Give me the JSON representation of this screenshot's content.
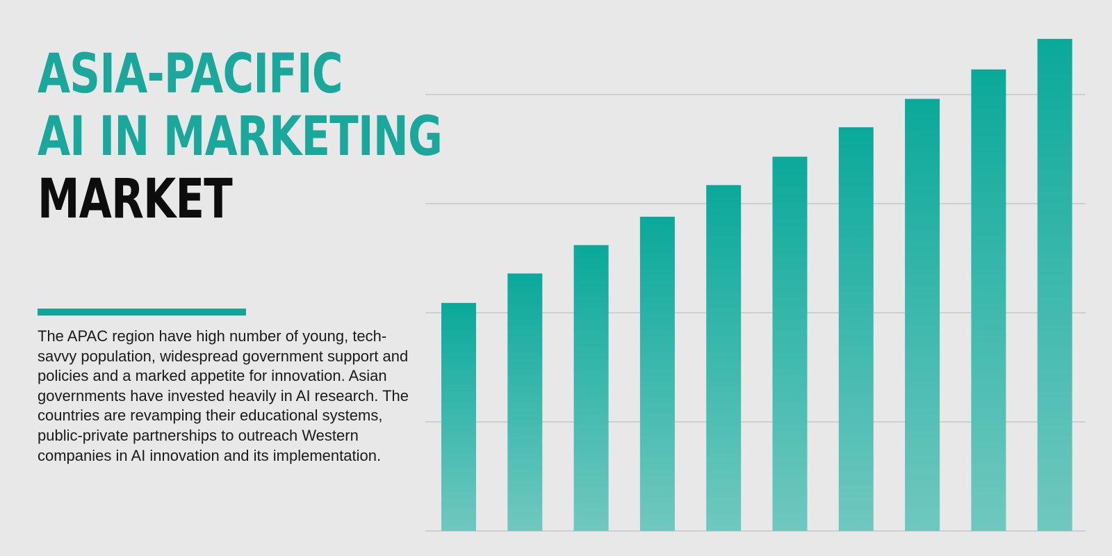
{
  "title": {
    "line1": "ASIA-PACIFIC",
    "line2": "AI IN MARKETING",
    "line3": "MARKET"
  },
  "description": "The APAC region have high number of young, tech-savvy population, widespread government support and policies and a marked appetite for innovation. Asian governments have invested heavily in AI research. The countries are revamping their educational systems, public-private partnerships to outreach Western companies in AI innovation and its implementation.",
  "colors": {
    "accent": "#14a598",
    "bar_top": "#0aa99a",
    "bar_bottom": "#70c8bf",
    "grid": "#cfcfcf"
  },
  "chart_data": {
    "type": "bar",
    "categories": [
      "",
      "",
      "",
      "",
      "",
      "",
      "",
      "",
      "",
      ""
    ],
    "values": [
      20.9,
      23.6,
      26.2,
      28.8,
      31.7,
      34.3,
      37.0,
      39.6,
      42.3,
      45.1
    ],
    "ylim": [
      0,
      50
    ],
    "grid": true,
    "legend": "none"
  }
}
